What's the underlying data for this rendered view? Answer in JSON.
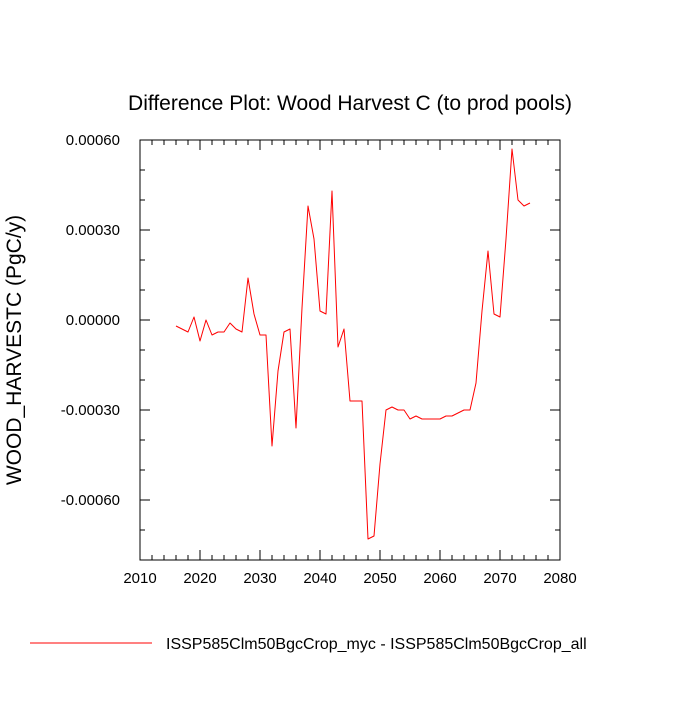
{
  "chart_data": {
    "type": "line",
    "title": "Difference Plot: Wood Harvest C (to prod pools)",
    "xlabel": "",
    "ylabel": "WOOD_HARVESTC  (PgC/y)",
    "xlim": [
      2010,
      2080
    ],
    "ylim": [
      -0.0008,
      0.0006
    ],
    "x_ticks": [
      2010,
      2020,
      2030,
      2040,
      2050,
      2060,
      2070,
      2080
    ],
    "x_tick_labels": [
      "2010",
      "2020",
      "2030",
      "2040",
      "2050",
      "2060",
      "2070",
      "2080"
    ],
    "y_ticks": [
      0.0006,
      0.0003,
      0.0,
      -0.0003,
      -0.0006
    ],
    "y_tick_labels": [
      "0.00060",
      "0.00030",
      "0.00000",
      "-0.00030",
      "-0.00060"
    ],
    "grid": false,
    "legend_position": "bottom",
    "series": [
      {
        "name": "ISSP585Clm50BgcCrop_myc - ISSP585Clm50BgcCrop_all",
        "color": "#ff0000",
        "x": [
          2016,
          2017,
          2018,
          2019,
          2020,
          2021,
          2022,
          2023,
          2024,
          2025,
          2026,
          2027,
          2028,
          2029,
          2030,
          2031,
          2032,
          2033,
          2034,
          2035,
          2036,
          2037,
          2038,
          2039,
          2040,
          2041,
          2042,
          2043,
          2044,
          2045,
          2046,
          2047,
          2048,
          2049,
          2050,
          2051,
          2052,
          2053,
          2054,
          2055,
          2056,
          2057,
          2058,
          2059,
          2060,
          2061,
          2062,
          2063,
          2064,
          2065,
          2066,
          2067,
          2068,
          2069,
          2070,
          2071,
          2072,
          2073,
          2074,
          2075
        ],
        "y": [
          -2e-05,
          -3e-05,
          -4e-05,
          1e-05,
          -7e-05,
          -0.0,
          -5e-05,
          -4e-05,
          -4e-05,
          -1e-05,
          -3e-05,
          -4e-05,
          0.00014,
          2e-05,
          -5e-05,
          -5e-05,
          -0.00042,
          -0.00017,
          -4e-05,
          -3e-05,
          -0.00036,
          4e-05,
          0.00038,
          0.00027,
          3e-05,
          2e-05,
          0.00043,
          -9e-05,
          -3e-05,
          -0.00027,
          -0.00027,
          -0.00027,
          -0.00073,
          -0.00072,
          -0.00048,
          -0.0003,
          -0.00029,
          -0.0003,
          -0.0003,
          -0.00033,
          -0.00032,
          -0.00033,
          -0.00033,
          -0.00033,
          -0.00033,
          -0.00032,
          -0.00032,
          -0.00031,
          -0.0003,
          -0.0003,
          -0.00021,
          3e-05,
          0.00023,
          2e-05,
          1e-05,
          0.00027,
          0.00057,
          0.0004,
          0.00038,
          0.00039
        ]
      }
    ]
  }
}
